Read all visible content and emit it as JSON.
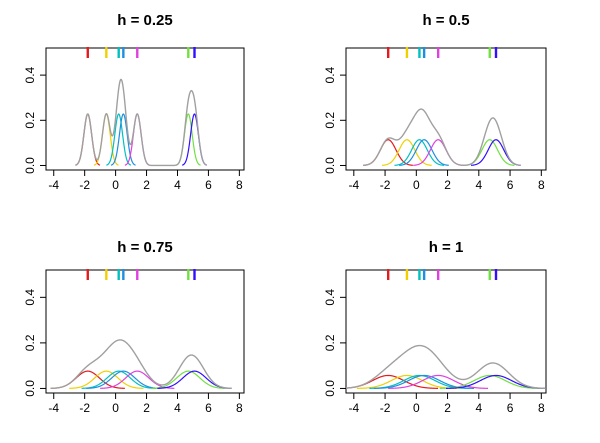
{
  "chart_data": {
    "type": "line",
    "layout": "2x2 grid",
    "data_points": [
      -1.8,
      -0.6,
      0.2,
      0.5,
      1.4,
      4.7,
      5.1
    ],
    "point_colors": [
      "#e41a1c",
      "#f0d000",
      "#00c0c0",
      "#1e8fe0",
      "#e040e0",
      "#70e040",
      "#3010ff"
    ],
    "total_color": "#a0a0a0",
    "xlim": [
      -4.5,
      8.3
    ],
    "ylim": [
      -0.02,
      0.52
    ],
    "xticks": [
      -4,
      -2,
      0,
      2,
      4,
      6,
      8
    ],
    "yticks": [
      0.0,
      0.2,
      0.4
    ],
    "xtick_labels": [
      "-4",
      "-2",
      "0",
      "2",
      "4",
      "6",
      "8"
    ],
    "ytick_labels": [
      "0.0",
      "0.2",
      "0.4"
    ],
    "panels": [
      {
        "title": "h = 0.25",
        "h": 0.25
      },
      {
        "title": "h = 0.5",
        "h": 0.5
      },
      {
        "title": "h = 0.75",
        "h": 0.75
      },
      {
        "title": "h = 1",
        "h": 1
      }
    ]
  }
}
